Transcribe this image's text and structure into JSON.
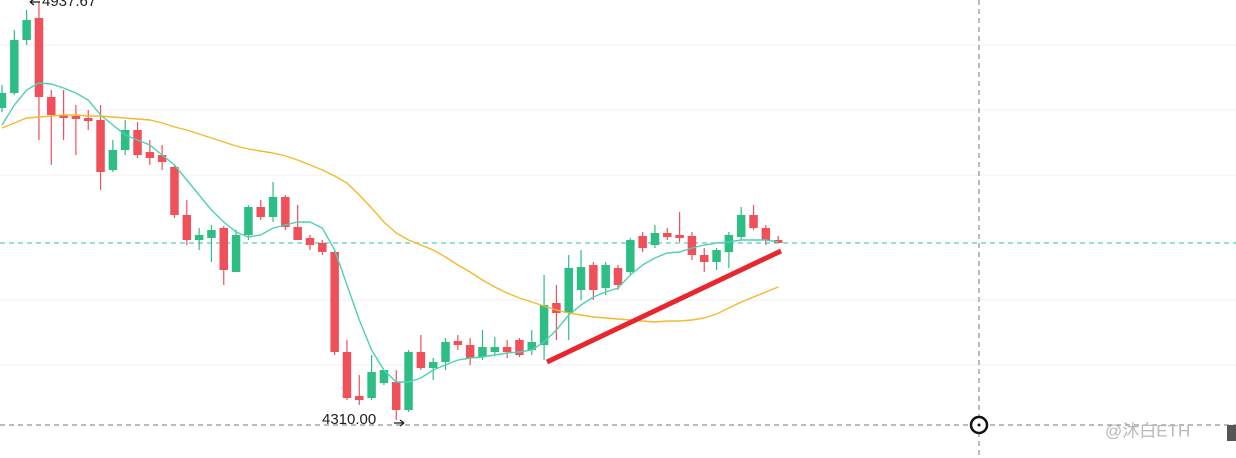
{
  "chart_data": {
    "type": "candlestick",
    "ylim": [
      4253,
      4940
    ],
    "up_color": "#2ebd85",
    "down_color": "#f0505a",
    "high_label": "4937.67",
    "low_label": "4310.00",
    "watermark": "@沐白ETH",
    "open": [
      4778,
      4800.5,
      4880,
      4913,
      4794.5,
      4767.5,
      4766,
      4763,
      4760,
      4685,
      4715,
      4745,
      4712,
      4707.5,
      4689.5,
      4617.5,
      4580,
      4583,
      4598,
      4532,
      4587.5,
      4629.5,
      4614.5,
      4644.5,
      4599.5,
      4583,
      4575.5,
      4562,
      4412,
      4346,
      4343,
      4365.5,
      4367,
      4325,
      4412,
      4388,
      4397,
      4428.5,
      4422.5,
      4404.5,
      4412,
      4419.5,
      4430,
      4415,
      4422.5,
      4485.5,
      4470.5,
      4505,
      4542.5,
      4508,
      4538,
      4532,
      4586,
      4572.5,
      4590.5,
      4587.5,
      4586,
      4557.5,
      4547,
      4562,
      4584.5,
      4617.5,
      4598,
      4580
    ],
    "high": [
      4812.5,
      4895,
      4925,
      4937.67,
      4805,
      4805,
      4782.5,
      4775,
      4782.5,
      4730,
      4760,
      4757,
      4730,
      4722.5,
      4692.5,
      4640,
      4598,
      4602.5,
      4601,
      4595,
      4632.5,
      4640,
      4667,
      4647.5,
      4632.5,
      4587.5,
      4580,
      4565,
      4430,
      4377.5,
      4407.5,
      4385,
      4385,
      4415,
      4437.5,
      4403,
      4433,
      4437.5,
      4433,
      4445,
      4434.5,
      4430,
      4433,
      4445,
      4527.5,
      4512.5,
      4557.5,
      4565,
      4547,
      4547,
      4542.5,
      4583,
      4592,
      4602.5,
      4598,
      4622,
      4592,
      4568,
      4568,
      4592,
      4629.5,
      4632.5,
      4602.5,
      4586
    ],
    "low": [
      4772,
      4797.5,
      4872.5,
      4730,
      4692.5,
      4730,
      4707.5,
      4745,
      4655,
      4682,
      4707.5,
      4703,
      4692.5,
      4685,
      4613,
      4572.5,
      4565,
      4547,
      4512.5,
      4532,
      4580,
      4610,
      4607,
      4595,
      4580,
      4565,
      4557.5,
      4407.5,
      4340,
      4332.5,
      4340,
      4362.5,
      4310,
      4322,
      4385,
      4370,
      4385,
      4415,
      4392.5,
      4400,
      4407.5,
      4403,
      4404.5,
      4407.5,
      4400,
      4430,
      4430,
      4490,
      4490,
      4497.5,
      4505,
      4527.5,
      4562,
      4568,
      4580,
      4577,
      4550,
      4532,
      4535,
      4538,
      4580,
      4595,
      4572.5,
      4575.5
    ],
    "close": [
      4800.5,
      4880,
      4910,
      4794.5,
      4767.5,
      4763,
      4761.5,
      4758.5,
      4682,
      4715,
      4745,
      4707.5,
      4703,
      4697,
      4617.5,
      4580,
      4587.5,
      4595,
      4535,
      4587.5,
      4629.5,
      4614.5,
      4644.5,
      4599.5,
      4580,
      4572.5,
      4562,
      4412,
      4343,
      4340,
      4382,
      4385,
      4325,
      4412,
      4388,
      4397,
      4427,
      4422.5,
      4403,
      4419.5,
      4419.5,
      4412,
      4407.5,
      4427,
      4482.5,
      4470.5,
      4538,
      4539.5,
      4505,
      4542.5,
      4512.5,
      4580,
      4568,
      4590.5,
      4584.5,
      4583,
      4557.5,
      4547,
      4565,
      4587.5,
      4617.5,
      4598,
      4580,
      4575.5
    ],
    "series": [
      {
        "color": "#4fd1b5",
        "values": [
          4752.5,
          4782.5,
          4805,
          4815.5,
          4814,
          4808,
          4800.5,
          4790,
          4767.5,
          4752.5,
          4737.5,
          4730,
          4722.5,
          4707.5,
          4692.5,
          4670,
          4647.5,
          4625,
          4607,
          4592,
          4584.5,
          4587.5,
          4598,
          4602.5,
          4607,
          4607,
          4598,
          4565,
          4512.5,
          4460,
          4415,
          4385,
          4367,
          4367,
          4373,
          4385,
          4392.5,
          4400,
          4403,
          4404.5,
          4407.5,
          4410.5,
          4412,
          4415,
          4427,
          4445,
          4467.5,
          4482.5,
          4494.5,
          4502,
          4508,
          4527.5,
          4542.5,
          4553,
          4560.5,
          4562,
          4568,
          4572.5,
          4575.5,
          4577,
          4580,
          4580,
          4580,
          4577
        ]
      },
      {
        "color": "#f5b82e",
        "values": [
          4748,
          4755.5,
          4763,
          4764.5,
          4766,
          4767.5,
          4767.5,
          4766,
          4766,
          4764.5,
          4763,
          4761.5,
          4760,
          4755.5,
          4749.5,
          4745,
          4739,
          4733,
          4727,
          4721,
          4716.5,
          4713.5,
          4710.5,
          4706,
          4700,
          4692.5,
          4685,
          4676,
          4665.5,
          4647.5,
          4628,
          4607,
          4590.5,
          4580,
          4572.5,
          4565,
          4554.5,
          4542.5,
          4532,
          4520,
          4509.5,
          4500.5,
          4493,
          4487,
          4481,
          4475,
          4470.5,
          4467.5,
          4464.5,
          4463,
          4461.5,
          4460,
          4458.5,
          4457,
          4458.5,
          4458.5,
          4460,
          4463,
          4469,
          4478,
          4487,
          4494.5,
          4502,
          4509.5
        ]
      }
    ]
  }
}
